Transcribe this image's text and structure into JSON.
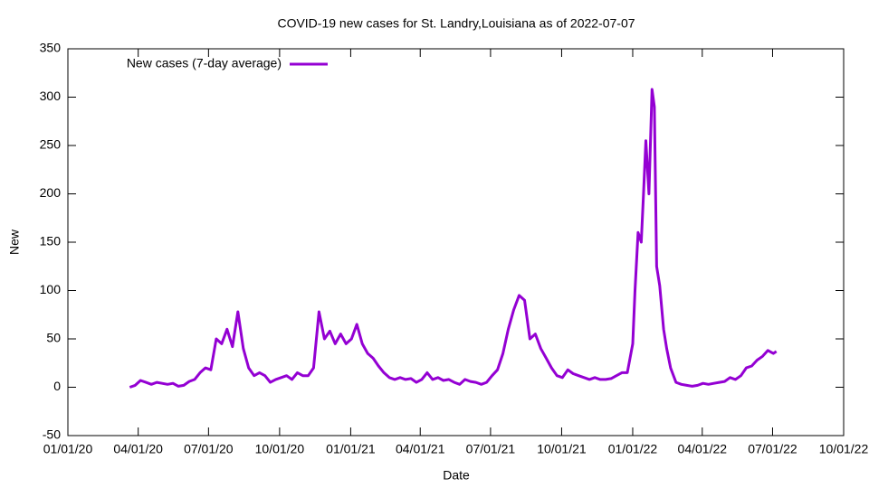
{
  "chart_data": {
    "type": "line",
    "title": "COVID-19 new cases for St. Landry,Louisiana as of 2022-07-07",
    "x_label": "Date",
    "y_label": "New",
    "xlim": [
      "2020-01-01",
      "2022-10-01"
    ],
    "xticks": [
      {
        "value": "2020-01-01",
        "label": "01/01/20"
      },
      {
        "value": "2020-04-01",
        "label": "04/01/20"
      },
      {
        "value": "2020-07-01",
        "label": "07/01/20"
      },
      {
        "value": "2020-10-01",
        "label": "10/01/20"
      },
      {
        "value": "2021-01-01",
        "label": "01/01/21"
      },
      {
        "value": "2021-04-01",
        "label": "04/01/21"
      },
      {
        "value": "2021-07-01",
        "label": "07/01/21"
      },
      {
        "value": "2021-10-01",
        "label": "10/01/21"
      },
      {
        "value": "2022-01-01",
        "label": "01/01/22"
      },
      {
        "value": "2022-04-01",
        "label": "04/01/22"
      },
      {
        "value": "2022-07-01",
        "label": "07/01/22"
      },
      {
        "value": "2022-10-01",
        "label": "10/01/22"
      }
    ],
    "ylim": [
      -50,
      350
    ],
    "yticks": [
      -50,
      0,
      50,
      100,
      150,
      200,
      250,
      300,
      350
    ],
    "grid": false,
    "legend": "top-left",
    "x": [
      "2020-03-21",
      "2020-03-28",
      "2020-04-04",
      "2020-04-11",
      "2020-04-18",
      "2020-04-25",
      "2020-05-02",
      "2020-05-09",
      "2020-05-16",
      "2020-05-23",
      "2020-05-30",
      "2020-06-06",
      "2020-06-13",
      "2020-06-20",
      "2020-06-27",
      "2020-07-04",
      "2020-07-11",
      "2020-07-18",
      "2020-07-25",
      "2020-08-01",
      "2020-08-08",
      "2020-08-15",
      "2020-08-22",
      "2020-08-29",
      "2020-09-05",
      "2020-09-12",
      "2020-09-19",
      "2020-09-26",
      "2020-10-03",
      "2020-10-10",
      "2020-10-17",
      "2020-10-24",
      "2020-10-31",
      "2020-11-07",
      "2020-11-14",
      "2020-11-21",
      "2020-11-28",
      "2020-12-05",
      "2020-12-12",
      "2020-12-19",
      "2020-12-26",
      "2021-01-02",
      "2021-01-09",
      "2021-01-16",
      "2021-01-23",
      "2021-01-30",
      "2021-02-06",
      "2021-02-13",
      "2021-02-20",
      "2021-02-27",
      "2021-03-06",
      "2021-03-13",
      "2021-03-20",
      "2021-03-27",
      "2021-04-03",
      "2021-04-10",
      "2021-04-17",
      "2021-04-24",
      "2021-05-01",
      "2021-05-08",
      "2021-05-15",
      "2021-05-22",
      "2021-05-29",
      "2021-06-05",
      "2021-06-12",
      "2021-06-19",
      "2021-06-26",
      "2021-07-03",
      "2021-07-10",
      "2021-07-17",
      "2021-07-24",
      "2021-07-31",
      "2021-08-07",
      "2021-08-14",
      "2021-08-21",
      "2021-08-28",
      "2021-09-04",
      "2021-09-11",
      "2021-09-18",
      "2021-09-25",
      "2021-10-02",
      "2021-10-09",
      "2021-10-16",
      "2021-10-23",
      "2021-10-30",
      "2021-11-06",
      "2021-11-13",
      "2021-11-20",
      "2021-11-27",
      "2021-12-04",
      "2021-12-11",
      "2021-12-18",
      "2021-12-25",
      "2022-01-01",
      "2022-01-04",
      "2022-01-08",
      "2022-01-12",
      "2022-01-15",
      "2022-01-18",
      "2022-01-22",
      "2022-01-26",
      "2022-01-29",
      "2022-02-01",
      "2022-02-05",
      "2022-02-10",
      "2022-02-14",
      "2022-02-19",
      "2022-02-26",
      "2022-03-05",
      "2022-03-12",
      "2022-03-19",
      "2022-03-26",
      "2022-04-02",
      "2022-04-09",
      "2022-04-16",
      "2022-04-23",
      "2022-04-30",
      "2022-05-07",
      "2022-05-14",
      "2022-05-21",
      "2022-05-28",
      "2022-06-04",
      "2022-06-11",
      "2022-06-18",
      "2022-06-25",
      "2022-07-02",
      "2022-07-06"
    ],
    "series": [
      {
        "name": "New cases (7-day average)",
        "color": "#9400d3",
        "values": [
          0,
          2,
          7,
          5,
          3,
          5,
          4,
          3,
          4,
          1,
          2,
          6,
          8,
          15,
          20,
          18,
          50,
          45,
          60,
          42,
          78,
          40,
          20,
          12,
          15,
          12,
          5,
          8,
          10,
          12,
          8,
          15,
          12,
          12,
          20,
          78,
          50,
          58,
          45,
          55,
          45,
          50,
          65,
          45,
          35,
          30,
          22,
          15,
          10,
          8,
          10,
          8,
          9,
          5,
          8,
          15,
          8,
          10,
          7,
          8,
          5,
          3,
          8,
          6,
          5,
          3,
          5,
          12,
          18,
          35,
          60,
          80,
          95,
          90,
          50,
          55,
          40,
          30,
          20,
          12,
          10,
          18,
          14,
          12,
          10,
          8,
          10,
          8,
          8,
          9,
          12,
          15,
          15,
          45,
          100,
          160,
          150,
          200,
          255,
          200,
          308,
          290,
          125,
          105,
          60,
          40,
          20,
          5,
          3,
          2,
          1,
          2,
          4,
          3,
          4,
          5,
          6,
          10,
          8,
          12,
          20,
          22,
          28,
          32,
          38,
          35,
          37
        ]
      }
    ]
  }
}
